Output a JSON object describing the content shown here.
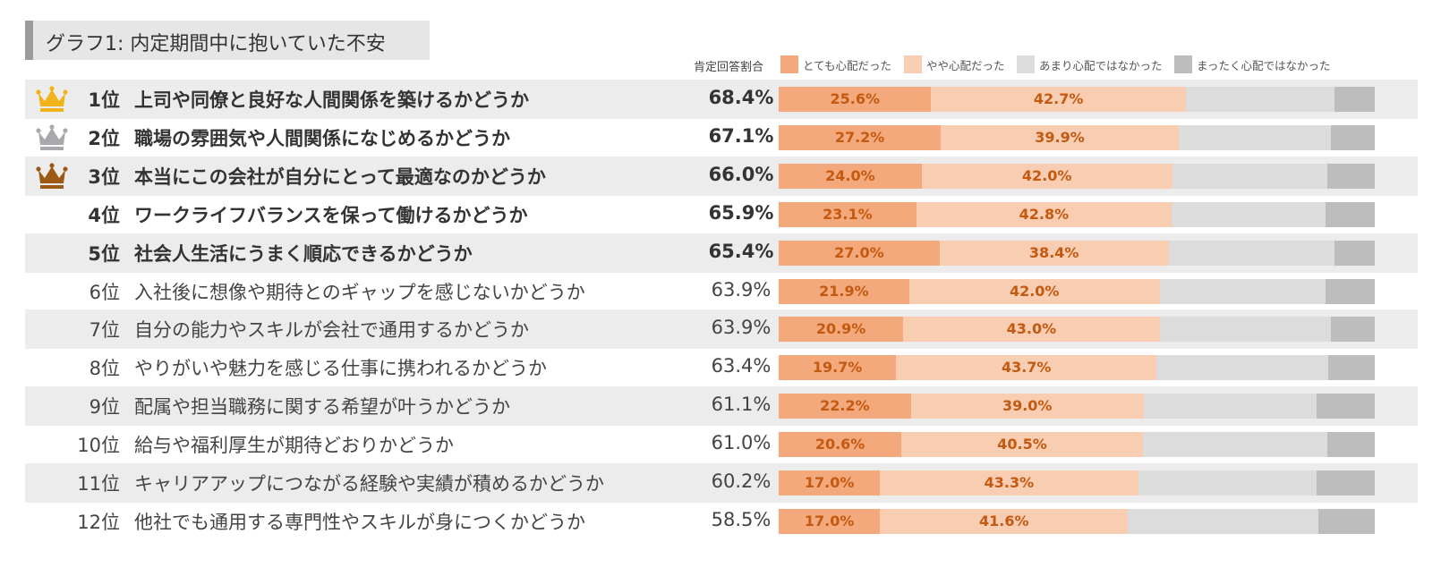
{
  "title": "グラフ1: 内定期間中に抱いていた不安",
  "column_header": "肯定回答割合",
  "legend": [
    {
      "label": "とても心配だった",
      "color": "#f3a97b"
    },
    {
      "label": "やや心配だった",
      "color": "#f9cdb1"
    },
    {
      "label": "あまり心配ではなかった",
      "color": "#dcdcdc"
    },
    {
      "label": "まったく心配ではなかった",
      "color": "#bdbdbd"
    }
  ],
  "crowns": {
    "gold": "#f2b21a",
    "silver": "#a7a9ac",
    "bronze": "#9c5a14"
  },
  "chart_data": {
    "type": "stacked-bar-horizontal",
    "title": "グラフ1: 内定期間中に抱いていた不安",
    "value_column_label": "肯定回答割合",
    "series_names": [
      "とても心配だった",
      "やや心配だった",
      "あまり心配ではなかった",
      "まったく心配ではなかった"
    ],
    "rows": [
      {
        "rank": "1位",
        "label": "上司や同僚と良好な人間関係を築けるかどうか",
        "positive": "68.4%",
        "very": 25.6,
        "somewhat": 42.7,
        "not_much": 25.0,
        "not_at_all": 6.7,
        "very_label": "25.6%",
        "somewhat_label": "42.7%"
      },
      {
        "rank": "2位",
        "label": "職場の雰囲気や人間関係になじめるかどうか",
        "positive": "67.1%",
        "very": 27.2,
        "somewhat": 39.9,
        "not_much": 25.5,
        "not_at_all": 7.4,
        "very_label": "27.2%",
        "somewhat_label": "39.9%"
      },
      {
        "rank": "3位",
        "label": "本当にこの会社が自分にとって最適なのかどうか",
        "positive": "66.0%",
        "very": 24.0,
        "somewhat": 42.0,
        "not_much": 26.0,
        "not_at_all": 8.0,
        "very_label": "24.0%",
        "somewhat_label": "42.0%"
      },
      {
        "rank": "4位",
        "label": "ワークライフバランスを保って働けるかどうか",
        "positive": "65.9%",
        "very": 23.1,
        "somewhat": 42.8,
        "not_much": 25.8,
        "not_at_all": 8.3,
        "very_label": "23.1%",
        "somewhat_label": "42.8%"
      },
      {
        "rank": "5位",
        "label": "社会人生活にうまく順応できるかどうか",
        "positive": "65.4%",
        "very": 27.0,
        "somewhat": 38.4,
        "not_much": 27.9,
        "not_at_all": 6.7,
        "very_label": "27.0%",
        "somewhat_label": "38.4%"
      },
      {
        "rank": "6位",
        "label": "入社後に想像や期待とのギャップを感じないかどうか",
        "positive": "63.9%",
        "very": 21.9,
        "somewhat": 42.0,
        "not_much": 27.8,
        "not_at_all": 8.3,
        "very_label": "21.9%",
        "somewhat_label": "42.0%"
      },
      {
        "rank": "7位",
        "label": "自分の能力やスキルが会社で通用するかどうか",
        "positive": "63.9%",
        "very": 20.9,
        "somewhat": 43.0,
        "not_much": 28.8,
        "not_at_all": 7.3,
        "very_label": "20.9%",
        "somewhat_label": "43.0%"
      },
      {
        "rank": "8位",
        "label": "やりがいや魅力を感じる仕事に携われるかどうか",
        "positive": "63.4%",
        "very": 19.7,
        "somewhat": 43.7,
        "not_much": 28.8,
        "not_at_all": 7.8,
        "very_label": "19.7%",
        "somewhat_label": "43.7%"
      },
      {
        "rank": "9位",
        "label": "配属や担当職務に関する希望が叶うかどうか",
        "positive": "61.1%",
        "very": 22.2,
        "somewhat": 39.0,
        "not_much": 29.0,
        "not_at_all": 9.8,
        "very_label": "22.2%",
        "somewhat_label": "39.0%"
      },
      {
        "rank": "10位",
        "label": "給与や福利厚生が期待どおりかどうか",
        "positive": "61.0%",
        "very": 20.6,
        "somewhat": 40.5,
        "not_much": 31.0,
        "not_at_all": 7.9,
        "very_label": "20.6%",
        "somewhat_label": "40.5%"
      },
      {
        "rank": "11位",
        "label": "キャリアアップにつながる経験や実績が積めるかどうか",
        "positive": "60.2%",
        "very": 17.0,
        "somewhat": 43.3,
        "not_much": 29.9,
        "not_at_all": 9.8,
        "very_label": "17.0%",
        "somewhat_label": "43.3%"
      },
      {
        "rank": "12位",
        "label": "他社でも通用する専門性やスキルが身につくかどうか",
        "positive": "58.5%",
        "very": 17.0,
        "somewhat": 41.6,
        "not_much": 32.0,
        "not_at_all": 9.4,
        "very_label": "17.0%",
        "somewhat_label": "41.6%"
      }
    ],
    "bold_rows": 5,
    "crowned_rows": {
      "0": "gold",
      "1": "silver",
      "2": "bronze"
    },
    "xlim": [
      0,
      100
    ]
  }
}
